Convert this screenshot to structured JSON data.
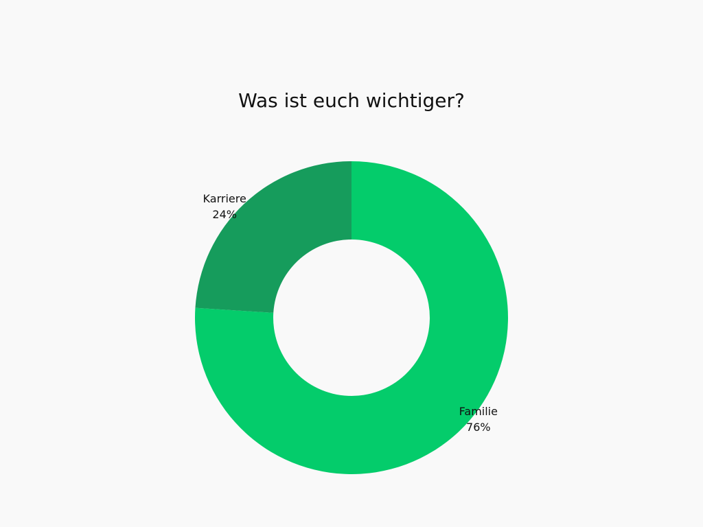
{
  "chart_data": {
    "type": "pie",
    "variant": "donut",
    "title": "Was ist euch wichtiger?",
    "slices": [
      {
        "label": "Familie",
        "value": 76,
        "value_label": "76%",
        "color": "#04cc6b"
      },
      {
        "label": "Karriere",
        "value": 24,
        "value_label": "24%",
        "color": "#169c5c"
      }
    ],
    "legend": "none",
    "background": "#f9f9f9"
  }
}
